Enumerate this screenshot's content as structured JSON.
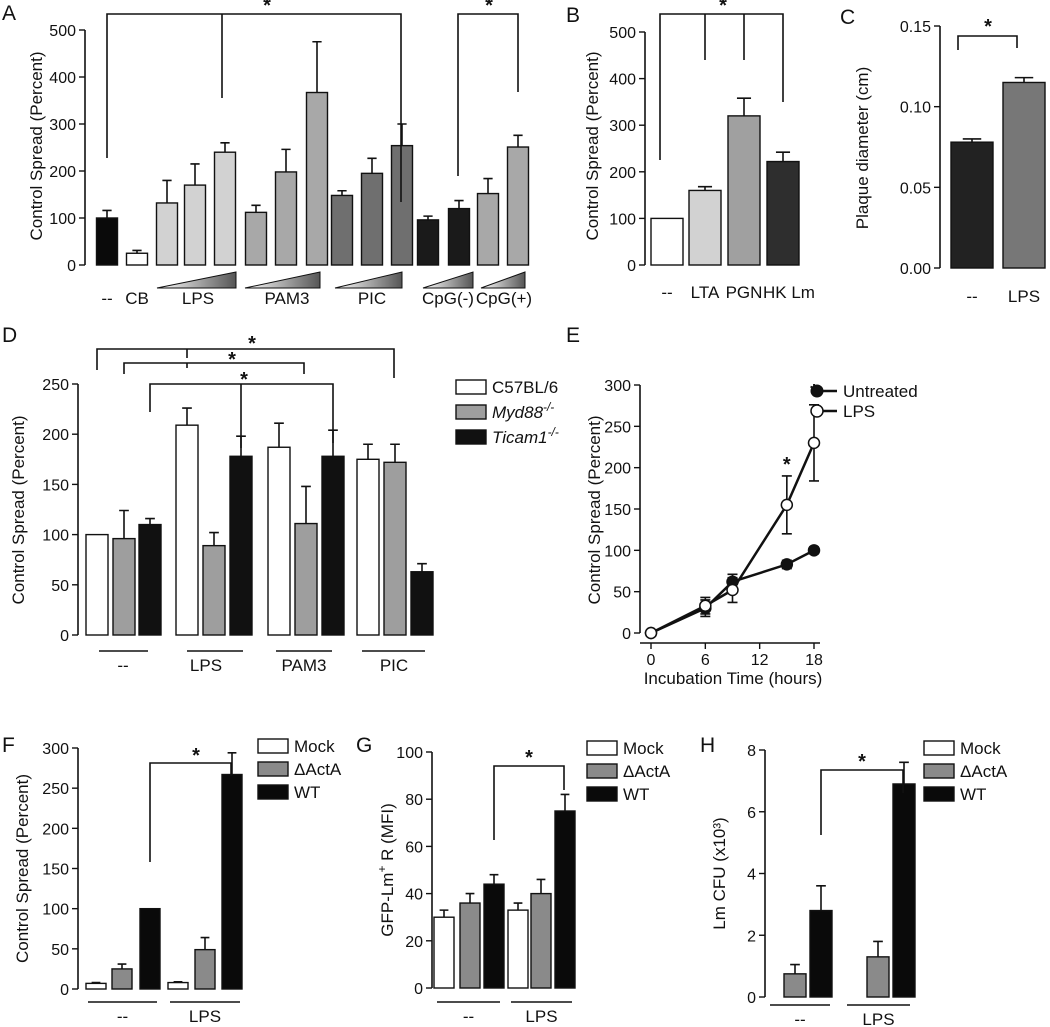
{
  "panels": {
    "A": {
      "letter": "A"
    },
    "B": {
      "letter": "B"
    },
    "C": {
      "letter": "C"
    },
    "D": {
      "letter": "D"
    },
    "E": {
      "letter": "E"
    },
    "F": {
      "letter": "F"
    },
    "G": {
      "letter": "G"
    },
    "H": {
      "letter": "H"
    }
  },
  "chart_data": [
    {
      "panel": "A",
      "type": "bar",
      "ylabel": "Control Spread (Percent)",
      "ylim": [
        0,
        500
      ],
      "yticks": [
        "0",
        "100",
        "200",
        "300",
        "400",
        "500"
      ],
      "bars": [
        {
          "group": "--",
          "value": 100,
          "err": 16,
          "color": "#0a0a0a"
        },
        {
          "group": "CB",
          "value": 25,
          "err": 6,
          "color": "#ffffff"
        },
        {
          "group": "LPS",
          "value": 132,
          "err": 48,
          "color": "#d2d2d2"
        },
        {
          "group": "LPS",
          "value": 170,
          "err": 45,
          "color": "#d2d2d2"
        },
        {
          "group": "LPS",
          "value": 240,
          "err": 20,
          "color": "#d2d2d2"
        },
        {
          "group": "PAM3",
          "value": 112,
          "err": 15,
          "color": "#a8a8a8"
        },
        {
          "group": "PAM3",
          "value": 198,
          "err": 48,
          "color": "#a8a8a8"
        },
        {
          "group": "PAM3",
          "value": 367,
          "err": 108,
          "color": "#a8a8a8"
        },
        {
          "group": "PIC",
          "value": 148,
          "err": 10,
          "color": "#6f6f6f"
        },
        {
          "group": "PIC",
          "value": 195,
          "err": 32,
          "color": "#6f6f6f"
        },
        {
          "group": "PIC",
          "value": 254,
          "err": 46,
          "color": "#6f6f6f"
        },
        {
          "group": "CpG(-)",
          "value": 96,
          "err": 8,
          "color": "#1a1a1a"
        },
        {
          "group": "CpG(-)",
          "value": 120,
          "err": 17,
          "color": "#1a1a1a"
        },
        {
          "group": "CpG(+)",
          "value": 152,
          "err": 32,
          "color": "#a8a8a8"
        },
        {
          "group": "CpG(+)",
          "value": 251,
          "err": 25,
          "color": "#a8a8a8"
        }
      ],
      "categories": [
        "--",
        "CB",
        "LPS",
        "PAM3",
        "PIC",
        "CpG(-)",
        "CpG(+)"
      ],
      "significance": [
        "*",
        "*"
      ]
    },
    {
      "panel": "B",
      "type": "bar",
      "ylabel": "Control Spread (Percent)",
      "ylim": [
        0,
        500
      ],
      "yticks": [
        "0",
        "100",
        "200",
        "300",
        "400",
        "500"
      ],
      "categories": [
        "--",
        "LTA",
        "PGN",
        "HK Lm"
      ],
      "values": [
        100,
        160,
        320,
        222
      ],
      "errors": [
        0,
        8,
        38,
        20
      ],
      "colors": [
        "#ffffff",
        "#d2d2d2",
        "#a0a0a0",
        "#2e2e2e"
      ],
      "significance": [
        "*"
      ]
    },
    {
      "panel": "C",
      "type": "bar",
      "ylabel": "Plaque diameter (cm)",
      "ylim": [
        0,
        0.15
      ],
      "yticks": [
        "0.00",
        "0.05",
        "0.10",
        "0.15"
      ],
      "categories": [
        "--",
        "LPS"
      ],
      "values": [
        0.078,
        0.115
      ],
      "errors": [
        0.002,
        0.003
      ],
      "colors": [
        "#222222",
        "#777777"
      ],
      "significance": [
        "*"
      ]
    },
    {
      "panel": "D",
      "type": "bar",
      "ylabel": "Control Spread (Percent)",
      "ylim": [
        0,
        250
      ],
      "yticks": [
        "0",
        "50",
        "100",
        "150",
        "200",
        "250"
      ],
      "categories": [
        "--",
        "LPS",
        "PAM3",
        "PIC"
      ],
      "series": [
        {
          "name": "C57BL/6",
          "name_sup": "",
          "italic": false,
          "color": "#ffffff",
          "values": [
            100,
            209,
            187,
            175
          ],
          "errors": [
            0,
            17,
            24,
            15
          ]
        },
        {
          "name": "Myd88",
          "name_sup": "-/-",
          "italic": true,
          "color": "#9e9e9e",
          "values": [
            96,
            89,
            111,
            172
          ],
          "errors": [
            28,
            13,
            37,
            18
          ]
        },
        {
          "name": "Ticam1",
          "name_sup": "-/-",
          "italic": true,
          "color": "#111111",
          "values": [
            110,
            178,
            178,
            63
          ],
          "errors": [
            6,
            20,
            26,
            8
          ]
        }
      ],
      "significance": [
        "*",
        "*",
        "*"
      ]
    },
    {
      "panel": "E",
      "type": "line",
      "xlabel": "Incubation Time (hours)",
      "ylabel": "Control Spread (Percent)",
      "xlim": [
        0,
        18
      ],
      "ylim": [
        0,
        300
      ],
      "xticks": [
        "0",
        "6",
        "12",
        "18"
      ],
      "yticks": [
        "0",
        "50",
        "100",
        "150",
        "200",
        "250",
        "300"
      ],
      "x": [
        0,
        6,
        9,
        15,
        18
      ],
      "series": [
        {
          "name": "Untreated",
          "marker": "filled",
          "values": [
            0,
            30,
            62,
            83,
            100
          ],
          "errors": [
            0,
            10,
            9,
            5,
            4
          ]
        },
        {
          "name": "LPS",
          "marker": "open",
          "values": [
            0,
            33,
            52,
            155,
            230
          ],
          "errors": [
            0,
            10,
            15,
            35,
            46
          ]
        }
      ],
      "significance": [
        "*",
        "*"
      ]
    },
    {
      "panel": "F",
      "type": "bar",
      "ylabel": "Control Spread (Percent)",
      "ylim": [
        0,
        300
      ],
      "yticks": [
        "0",
        "50",
        "100",
        "150",
        "200",
        "250",
        "300"
      ],
      "categories": [
        "--",
        "LPS"
      ],
      "series": [
        {
          "name": "Mock",
          "color": "#ffffff",
          "values": [
            7,
            8
          ],
          "errors": [
            1,
            1
          ]
        },
        {
          "name": "ΔActA",
          "color": "#8a8a8a",
          "values": [
            25,
            49
          ],
          "errors": [
            6,
            15
          ]
        },
        {
          "name": "WT",
          "color": "#0a0a0a",
          "values": [
            100,
            267
          ],
          "errors": [
            0,
            27
          ]
        }
      ],
      "significance": [
        "*"
      ]
    },
    {
      "panel": "G",
      "type": "bar",
      "ylabel": "GFP-Lm+ R (MFI)",
      "ylabel_main": "GFP-Lm",
      "ylabel_sup": "+",
      "ylabel_tail": " R (MFI)",
      "ylim": [
        0,
        100
      ],
      "yticks": [
        "0",
        "20",
        "40",
        "60",
        "80",
        "100"
      ],
      "categories": [
        "--",
        "LPS"
      ],
      "series": [
        {
          "name": "Mock",
          "color": "#ffffff",
          "values": [
            30,
            33
          ],
          "errors": [
            3,
            3
          ]
        },
        {
          "name": "ΔActA",
          "color": "#8a8a8a",
          "values": [
            36,
            40
          ],
          "errors": [
            4,
            6
          ]
        },
        {
          "name": "WT",
          "color": "#0a0a0a",
          "values": [
            44,
            75
          ],
          "errors": [
            4,
            7
          ]
        }
      ],
      "significance": [
        "*"
      ]
    },
    {
      "panel": "H",
      "type": "bar",
      "ylabel": "Lm CFU (x10³)",
      "ylim": [
        0,
        8
      ],
      "yticks": [
        "0",
        "2",
        "4",
        "6",
        "8"
      ],
      "categories": [
        "--",
        "LPS"
      ],
      "series": [
        {
          "name": "Mock",
          "color": "#ffffff",
          "values": [
            0,
            0
          ],
          "errors": [
            0,
            0
          ]
        },
        {
          "name": "ΔActA",
          "color": "#8a8a8a",
          "values": [
            0.75,
            1.3
          ],
          "errors": [
            0.3,
            0.5
          ]
        },
        {
          "name": "WT",
          "color": "#0a0a0a",
          "values": [
            2.8,
            6.9
          ],
          "errors": [
            0.8,
            0.7
          ]
        }
      ],
      "significance": [
        "*"
      ]
    }
  ]
}
